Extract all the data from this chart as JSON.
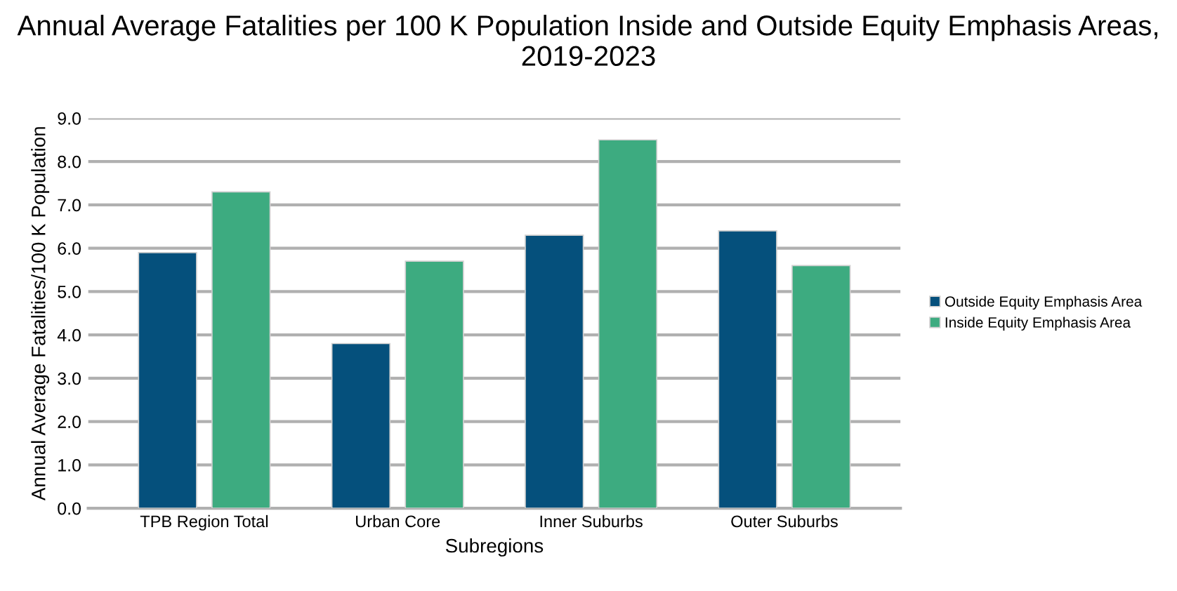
{
  "chart_data": {
    "type": "bar",
    "title": "Annual Average Fatalities per 100 K Population Inside and Outside Equity Emphasis Areas, 2019-2023",
    "xlabel": "Subregions",
    "ylabel": "Annual Average Fatalities/100 K Population",
    "categories": [
      "TPB Region Total",
      "Urban Core",
      "Inner Suburbs",
      "Outer Suburbs"
    ],
    "series": [
      {
        "name": "Outside Equity Emphasis Area",
        "color": "#05507c",
        "values": [
          5.9,
          3.8,
          6.3,
          6.4
        ]
      },
      {
        "name": "Inside Equity Emphasis Area",
        "color": "#3dab80",
        "values": [
          7.3,
          5.7,
          8.5,
          5.6
        ]
      }
    ],
    "ylim": [
      0,
      9
    ],
    "yticks": [
      {
        "value": 0,
        "label": "0.0"
      },
      {
        "value": 1,
        "label": "1.0"
      },
      {
        "value": 2,
        "label": "2.0"
      },
      {
        "value": 3,
        "label": "3.0"
      },
      {
        "value": 4,
        "label": "4.0"
      },
      {
        "value": 5,
        "label": "5.0"
      },
      {
        "value": 6,
        "label": "6.0"
      },
      {
        "value": 7,
        "label": "7.0"
      },
      {
        "value": 8,
        "label": "8.0"
      },
      {
        "value": 9,
        "label": "9.0"
      }
    ],
    "grid": "y",
    "legend": "right"
  }
}
